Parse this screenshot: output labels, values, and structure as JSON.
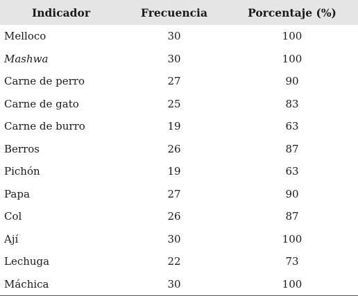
{
  "table": {
    "headers": [
      "Indicador",
      "Frecuencia",
      "Porcentaje (%)"
    ],
    "rows": [
      {
        "indicador": "Melloco",
        "frecuencia": "30",
        "porcentaje": "100",
        "italic": false
      },
      {
        "indicador": "Mashwa",
        "frecuencia": "30",
        "porcentaje": "100",
        "italic": true
      },
      {
        "indicador": "Carne de perro",
        "frecuencia": "27",
        "porcentaje": "90",
        "italic": false
      },
      {
        "indicador": "Carne de gato",
        "frecuencia": "25",
        "porcentaje": "83",
        "italic": false
      },
      {
        "indicador": "Carne de burro",
        "frecuencia": "19",
        "porcentaje": "63",
        "italic": false
      },
      {
        "indicador": "Berros",
        "frecuencia": "26",
        "porcentaje": "87",
        "italic": false
      },
      {
        "indicador": "Pichón",
        "frecuencia": "19",
        "porcentaje": "63",
        "italic": false
      },
      {
        "indicador": "Papa",
        "frecuencia": "27",
        "porcentaje": "90",
        "italic": false
      },
      {
        "indicador": "Col",
        "frecuencia": "26",
        "porcentaje": "87",
        "italic": false
      },
      {
        "indicador": "Ají",
        "frecuencia": "30",
        "porcentaje": "100",
        "italic": false
      },
      {
        "indicador": "Lechuga",
        "frecuencia": "22",
        "porcentaje": "73",
        "italic": false
      },
      {
        "indicador": "Máchica",
        "frecuencia": "30",
        "porcentaje": "100",
        "italic": false
      }
    ]
  },
  "colors": {
    "header_background": "#e5e5e5",
    "text": "#1a1a1a",
    "bottom_rule": "#555555"
  }
}
